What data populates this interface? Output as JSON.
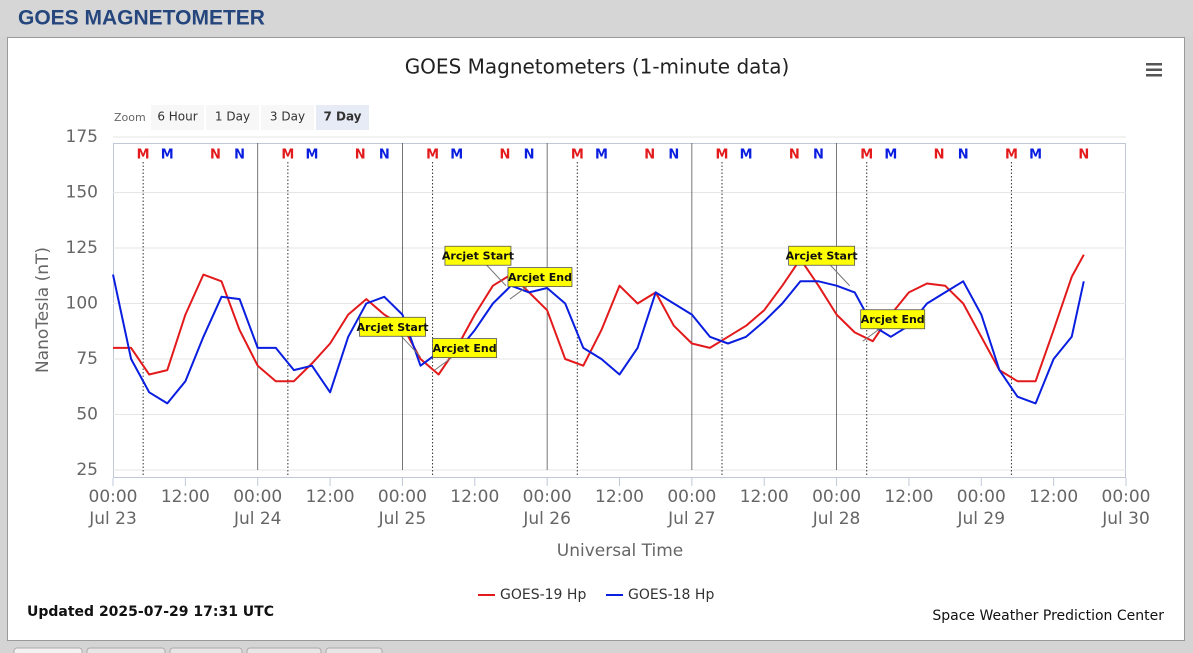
{
  "header": {
    "title": "GOES MAGNETOMETER"
  },
  "zoom": {
    "label": "Zoom",
    "buttons": [
      "6 Hour",
      "1 Day",
      "3 Day",
      "7 Day"
    ],
    "selected": 3
  },
  "footer": {
    "updated": "Updated 2025-07-29 17:31 UTC",
    "credit": "Space Weather Prediction Center"
  },
  "chart_data": {
    "type": "line",
    "title": "GOES Magnetometers (1-minute data)",
    "x_label": "Universal Time",
    "y_label": "NanoTesla (nT)",
    "xlim": [
      "Jul 23 00:00",
      "Jul 30 00:00"
    ],
    "ylim": [
      25,
      175
    ],
    "yticks": [
      25,
      50,
      75,
      100,
      125,
      150,
      175
    ],
    "grid": true,
    "xticks": [
      {
        "value": "Jul 23 00:00",
        "label": [
          "00:00",
          "Jul 23"
        ]
      },
      {
        "value": "Jul 23 12:00",
        "label": "12:00"
      },
      {
        "value": "Jul 24 00:00",
        "label": [
          "00:00",
          "Jul 24"
        ]
      },
      {
        "value": "Jul 24 12:00",
        "label": "12:00"
      },
      {
        "value": "Jul 25 00:00",
        "label": [
          "00:00",
          "Jul 25"
        ]
      },
      {
        "value": "Jul 25 12:00",
        "label": "12:00"
      },
      {
        "value": "Jul 26 00:00",
        "label": [
          "00:00",
          "Jul 26"
        ]
      },
      {
        "value": "Jul 26 12:00",
        "label": "12:00"
      },
      {
        "value": "Jul 27 00:00",
        "label": [
          "00:00",
          "Jul 27"
        ]
      },
      {
        "value": "Jul 27 12:00",
        "label": "12:00"
      },
      {
        "value": "Jul 28 00:00",
        "label": [
          "00:00",
          "Jul 28"
        ]
      },
      {
        "value": "Jul 28 12:00",
        "label": "12:00"
      },
      {
        "value": "Jul 29 00:00",
        "label": [
          "00:00",
          "Jul 29"
        ]
      },
      {
        "value": "Jul 29 12:00",
        "label": "12:00"
      },
      {
        "value": "Jul 30 00:00",
        "label": [
          "00:00",
          "Jul 30"
        ]
      }
    ],
    "plot_lines": [
      "Jul 24 00:00",
      "Jul 25 00:00",
      "Jul 26 00:00",
      "Jul 27 00:00",
      "Jul 28 00:00"
    ],
    "x": [
      "Jul 23 00:00",
      "Jul 23 03:00",
      "Jul 23 06:00",
      "Jul 23 09:00",
      "Jul 23 12:00",
      "Jul 23 15:00",
      "Jul 23 18:00",
      "Jul 23 21:00",
      "Jul 24 00:00",
      "Jul 24 03:00",
      "Jul 24 06:00",
      "Jul 24 09:00",
      "Jul 24 12:00",
      "Jul 24 15:00",
      "Jul 24 18:00",
      "Jul 24 21:00",
      "Jul 25 00:00",
      "Jul 25 03:00",
      "Jul 25 06:00",
      "Jul 25 09:00",
      "Jul 25 12:00",
      "Jul 25 15:00",
      "Jul 25 18:00",
      "Jul 25 21:00",
      "Jul 26 00:00",
      "Jul 26 03:00",
      "Jul 26 06:00",
      "Jul 26 09:00",
      "Jul 26 12:00",
      "Jul 26 15:00",
      "Jul 26 18:00",
      "Jul 26 21:00",
      "Jul 27 00:00",
      "Jul 27 03:00",
      "Jul 27 06:00",
      "Jul 27 09:00",
      "Jul 27 12:00",
      "Jul 27 15:00",
      "Jul 27 18:00",
      "Jul 27 21:00",
      "Jul 28 00:00",
      "Jul 28 03:00",
      "Jul 28 06:00",
      "Jul 28 09:00",
      "Jul 28 12:00",
      "Jul 28 15:00",
      "Jul 28 18:00",
      "Jul 28 21:00",
      "Jul 29 00:00",
      "Jul 29 03:00",
      "Jul 29 06:00",
      "Jul 29 09:00",
      "Jul 29 12:00",
      "Jul 29 15:00",
      "Jul 29 17:00"
    ],
    "series": [
      {
        "name": "GOES-19 Hp",
        "color": "#e31a1c",
        "values": [
          80,
          80,
          68,
          70,
          95,
          113,
          110,
          88,
          72,
          65,
          65,
          73,
          82,
          95,
          102,
          95,
          90,
          75,
          68,
          80,
          95,
          108,
          113,
          105,
          97,
          75,
          72,
          88,
          108,
          100,
          105,
          90,
          82,
          80,
          85,
          90,
          97,
          108,
          120,
          108,
          95,
          87,
          83,
          95,
          105,
          109,
          108,
          100,
          85,
          70,
          65,
          65,
          88,
          112,
          122
        ]
      },
      {
        "name": "GOES-18 Hp",
        "color": "#0a1ee0",
        "values": [
          113,
          75,
          60,
          55,
          65,
          85,
          103,
          102,
          80,
          80,
          70,
          72,
          60,
          85,
          100,
          103,
          95,
          72,
          78,
          78,
          88,
          100,
          108,
          105,
          107,
          100,
          80,
          75,
          68,
          80,
          105,
          100,
          95,
          85,
          82,
          85,
          92,
          100,
          110,
          110,
          108,
          105,
          90,
          85,
          90,
          100,
          105,
          110,
          95,
          70,
          58,
          55,
          75,
          85,
          110
        ]
      }
    ],
    "markers": [
      {
        "label": "M",
        "color": "#e31a1c",
        "x": "Jul 23 05:00",
        "line": "dotted"
      },
      {
        "label": "M",
        "color": "#0a1ee0",
        "x": "Jul 23 09:00"
      },
      {
        "label": "N",
        "color": "#e31a1c",
        "x": "Jul 23 17:00"
      },
      {
        "label": "N",
        "color": "#0a1ee0",
        "x": "Jul 23 21:00"
      },
      {
        "label": "M",
        "color": "#e31a1c",
        "x": "Jul 24 05:00",
        "line": "dotted"
      },
      {
        "label": "M",
        "color": "#0a1ee0",
        "x": "Jul 24 09:00"
      },
      {
        "label": "N",
        "color": "#e31a1c",
        "x": "Jul 24 17:00"
      },
      {
        "label": "N",
        "color": "#0a1ee0",
        "x": "Jul 24 21:00"
      },
      {
        "label": "M",
        "color": "#e31a1c",
        "x": "Jul 25 05:00",
        "line": "dotted"
      },
      {
        "label": "M",
        "color": "#0a1ee0",
        "x": "Jul 25 09:00"
      },
      {
        "label": "N",
        "color": "#e31a1c",
        "x": "Jul 25 17:00"
      },
      {
        "label": "N",
        "color": "#0a1ee0",
        "x": "Jul 25 21:00"
      },
      {
        "label": "M",
        "color": "#e31a1c",
        "x": "Jul 26 05:00",
        "line": "dotted"
      },
      {
        "label": "M",
        "color": "#0a1ee0",
        "x": "Jul 26 09:00"
      },
      {
        "label": "N",
        "color": "#e31a1c",
        "x": "Jul 26 17:00"
      },
      {
        "label": "N",
        "color": "#0a1ee0",
        "x": "Jul 26 21:00"
      },
      {
        "label": "M",
        "color": "#e31a1c",
        "x": "Jul 27 05:00",
        "line": "dotted"
      },
      {
        "label": "M",
        "color": "#0a1ee0",
        "x": "Jul 27 09:00"
      },
      {
        "label": "N",
        "color": "#e31a1c",
        "x": "Jul 27 17:00"
      },
      {
        "label": "N",
        "color": "#0a1ee0",
        "x": "Jul 27 21:00"
      },
      {
        "label": "M",
        "color": "#e31a1c",
        "x": "Jul 28 05:00",
        "line": "dotted"
      },
      {
        "label": "M",
        "color": "#0a1ee0",
        "x": "Jul 28 09:00"
      },
      {
        "label": "N",
        "color": "#e31a1c",
        "x": "Jul 28 17:00"
      },
      {
        "label": "N",
        "color": "#0a1ee0",
        "x": "Jul 28 21:00"
      },
      {
        "label": "M",
        "color": "#e31a1c",
        "x": "Jul 29 05:00",
        "line": "dotted"
      },
      {
        "label": "M",
        "color": "#0a1ee0",
        "x": "Jul 29 09:00"
      },
      {
        "label": "N",
        "color": "#e31a1c",
        "x": "Jul 29 17:00"
      }
    ],
    "annotations": [
      {
        "text": "Arcjet Start",
        "x": "Jul 25 03:00",
        "y": 76
      },
      {
        "text": "Arcjet End",
        "x": "Jul 25 05:20",
        "y": 70
      },
      {
        "text": "Arcjet Start",
        "x": "Jul 25 17:10",
        "y": 108
      },
      {
        "text": "Arcjet End",
        "x": "Jul 25 17:50",
        "y": 102
      },
      {
        "text": "Arcjet Start",
        "x": "Jul 28 02:10",
        "y": 108
      },
      {
        "text": "Arcjet End",
        "x": "Jul 28 04:20",
        "y": 83
      }
    ]
  }
}
